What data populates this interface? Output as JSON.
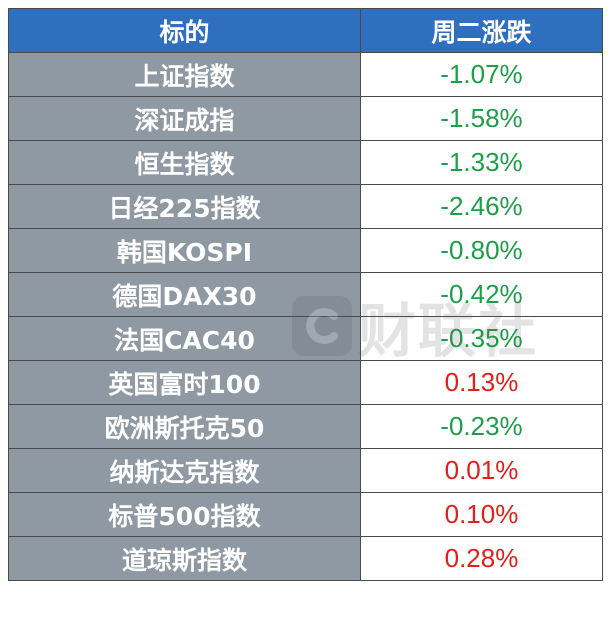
{
  "header": {
    "col_name": "标的",
    "col_change": "周二涨跌"
  },
  "rows": [
    {
      "name": "上证指数",
      "change": "-1.07%",
      "color": "#1e9e48"
    },
    {
      "name": "深证成指",
      "change": "-1.58%",
      "color": "#1e9e48"
    },
    {
      "name": "恒生指数",
      "change": "-1.33%",
      "color": "#1e9e48"
    },
    {
      "name": "日经225指数",
      "change": "-2.46%",
      "color": "#1e9e48"
    },
    {
      "name": "韩国KOSPI",
      "change": "-0.80%",
      "color": "#1e9e48"
    },
    {
      "name": "德国DAX30",
      "change": "-0.42%",
      "color": "#1e9e48"
    },
    {
      "name": "法国CAC40",
      "change": "-0.35%",
      "color": "#1e9e48"
    },
    {
      "name": "英国富时100",
      "change": "0.13%",
      "color": "#e0201b"
    },
    {
      "name": "欧洲斯托克50",
      "change": "-0.23%",
      "color": "#1e9e48"
    },
    {
      "name": "纳斯达克指数",
      "change": "0.01%",
      "color": "#e0201b"
    },
    {
      "name": "标普500指数",
      "change": "0.10%",
      "color": "#e0201b"
    },
    {
      "name": "道琼斯指数",
      "change": "0.28%",
      "color": "#e0201b"
    }
  ],
  "watermark": {
    "text": "财联社",
    "icon": "cls-logo-icon"
  },
  "colors": {
    "header_bg": "#2f6fc0",
    "name_bg": "#8e99a3",
    "down": "#1e9e48",
    "up": "#e0201b"
  }
}
